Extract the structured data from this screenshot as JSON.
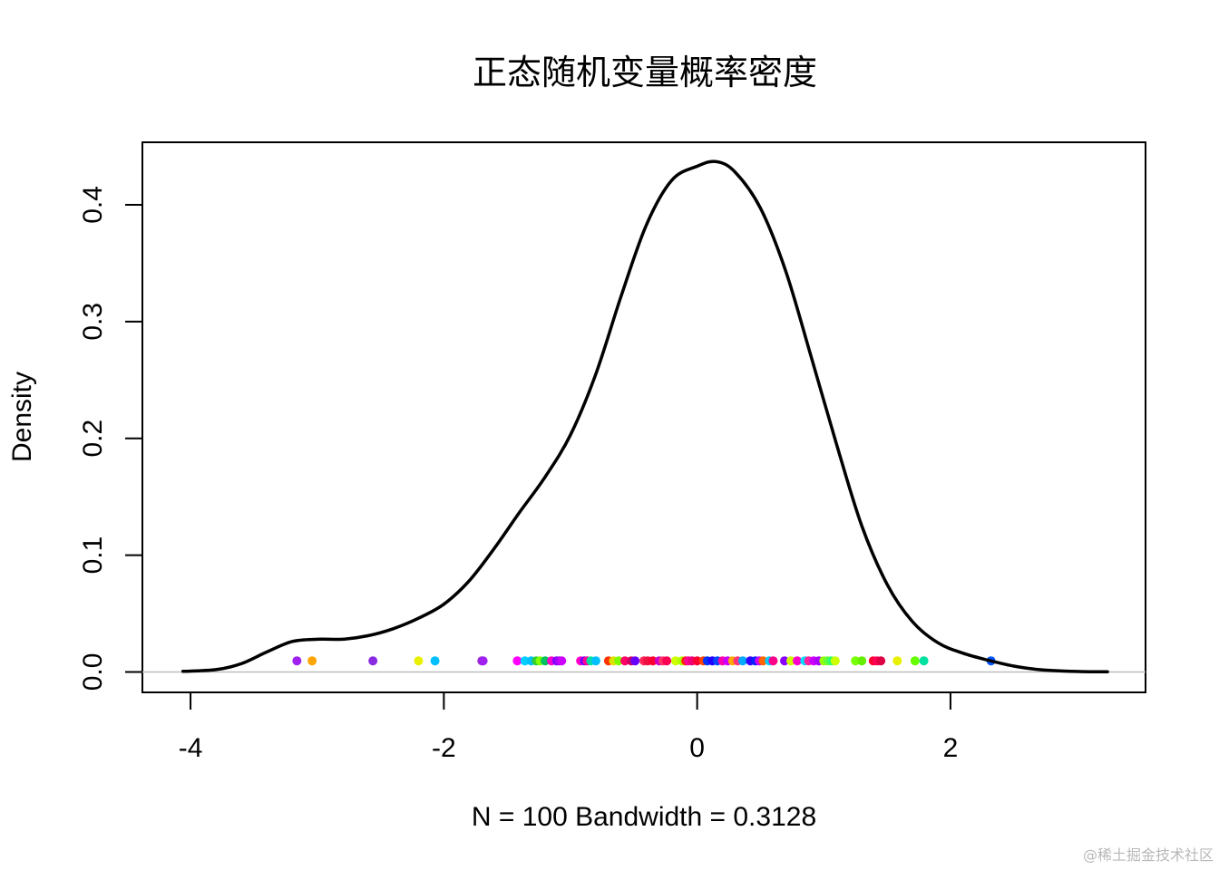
{
  "chart_data": {
    "type": "line",
    "title": "正态随机变量概率密度",
    "xlabel": "N = 100   Bandwidth = 0.3128",
    "ylabel": "Density",
    "xlim": [
      -4.38,
      3.54
    ],
    "ylim": [
      -0.0175,
      0.4535
    ],
    "x_ticks": [
      -4,
      -2,
      0,
      2
    ],
    "x_tick_labels": [
      "-4",
      "-2",
      "0",
      "2"
    ],
    "y_ticks": [
      0.0,
      0.1,
      0.2,
      0.3,
      0.4
    ],
    "y_tick_labels": [
      "0.0",
      "0.1",
      "0.2",
      "0.3",
      "0.4"
    ],
    "grid": false,
    "baseline": 0,
    "density_curve": {
      "x": [
        -4.06,
        -3.8,
        -3.6,
        -3.4,
        -3.2,
        -3.0,
        -2.8,
        -2.6,
        -2.4,
        -2.2,
        -2.0,
        -1.8,
        -1.6,
        -1.4,
        -1.2,
        -1.0,
        -0.8,
        -0.6,
        -0.4,
        -0.2,
        0.0,
        0.15,
        0.3,
        0.5,
        0.7,
        0.9,
        1.1,
        1.3,
        1.5,
        1.7,
        1.9,
        2.1,
        2.3,
        2.5,
        2.7,
        2.9,
        3.1,
        3.24
      ],
      "y": [
        0.0005,
        0.002,
        0.007,
        0.017,
        0.026,
        0.028,
        0.028,
        0.031,
        0.037,
        0.046,
        0.058,
        0.078,
        0.106,
        0.137,
        0.167,
        0.203,
        0.255,
        0.322,
        0.383,
        0.421,
        0.433,
        0.437,
        0.428,
        0.397,
        0.343,
        0.27,
        0.195,
        0.125,
        0.075,
        0.043,
        0.025,
        0.016,
        0.01,
        0.005,
        0.002,
        0.0007,
        0.0002,
        0.0001
      ]
    },
    "rug_points": {
      "y": 0.0095,
      "x": [
        -3.16,
        -3.04,
        -2.56,
        -2.2,
        -2.07,
        -1.7,
        -1.69,
        -1.42,
        -1.36,
        -1.31,
        -1.27,
        -1.24,
        -1.2,
        -1.15,
        -1.11,
        -1.09,
        -1.07,
        -0.92,
        -0.89,
        -0.87,
        -0.84,
        -0.8,
        -0.7,
        -0.66,
        -0.62,
        -0.57,
        -0.52,
        -0.49,
        -0.42,
        -0.39,
        -0.35,
        -0.3,
        -0.27,
        -0.24,
        -0.17,
        -0.12,
        -0.09,
        -0.07,
        -0.04,
        0.0,
        0.05,
        0.08,
        0.12,
        0.16,
        0.2,
        0.24,
        0.28,
        0.32,
        0.36,
        0.42,
        0.46,
        0.49,
        0.52,
        0.57,
        0.6,
        0.69,
        0.74,
        0.79,
        0.85,
        0.88,
        0.92,
        0.96,
        1.0,
        1.03,
        1.06,
        1.09,
        1.25,
        1.3,
        1.39,
        1.42,
        1.45,
        1.58,
        1.72,
        1.79,
        2.32
      ],
      "colors": [
        "#a020f0",
        "#ffa500",
        "#8a2be2",
        "#e8f000",
        "#00bfff",
        "#9932cc",
        "#a020f0",
        "#ff00ff",
        "#00d0ff",
        "#00bfff",
        "#32cd32",
        "#7fff00",
        "#00c060",
        "#ff00cc",
        "#8000ff",
        "#a000ff",
        "#cc00ff",
        "#ff00cc",
        "#7000ff",
        "#ff0099",
        "#00e0a0",
        "#00c0ff",
        "#ff3300",
        "#e0e000",
        "#7fff00",
        "#ff0066",
        "#cc0066",
        "#6600ff",
        "#ff2255",
        "#ee1144",
        "#ff0033",
        "#cc00cc",
        "#ff3366",
        "#ff0055",
        "#ccff00",
        "#aaff00",
        "#ff2200",
        "#ff0099",
        "#ee0077",
        "#ff0033",
        "#ff4400",
        "#0033ff",
        "#2200ff",
        "#0044ff",
        "#ff00aa",
        "#cc00ff",
        "#ffaa00",
        "#ff3377",
        "#00aaff",
        "#3300ff",
        "#0022ff",
        "#cc00ff",
        "#ff6600",
        "#00ccff",
        "#ff0088",
        "#8800ff",
        "#ccff00",
        "#ff00cc",
        "#00e0ff",
        "#ff2299",
        "#cc00ff",
        "#aa00ff",
        "#99ff00",
        "#66ff33",
        "#33ff66",
        "#ccff00",
        "#77ff00",
        "#66ee00",
        "#ff0033",
        "#ff0055",
        "#dd0044",
        "#e8f000",
        "#66ff00",
        "#00e0a0",
        "#0055ff"
      ]
    }
  },
  "watermark": "@稀土掘金技术社区"
}
